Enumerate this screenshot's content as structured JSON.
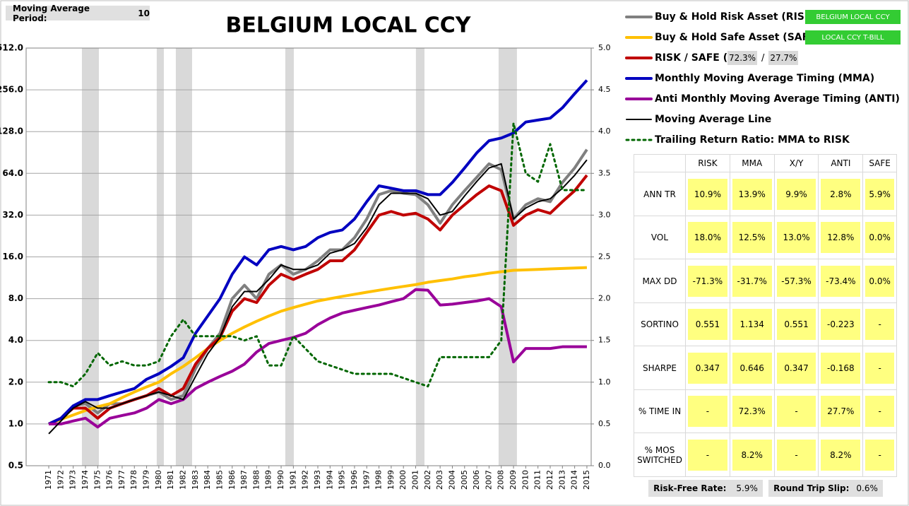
{
  "chart_data": {
    "type": "line",
    "title": "BELGIUM LOCAL CCY",
    "yscale": "log",
    "ylim": [
      0.5,
      512
    ],
    "yticks": [
      {
        "value": 0.5,
        "label": "0.5"
      },
      {
        "value": 1,
        "label": "1.0"
      },
      {
        "value": 2,
        "label": "2.0"
      },
      {
        "value": 4,
        "label": "4.0"
      },
      {
        "value": 8,
        "label": "8.0"
      },
      {
        "value": 16,
        "label": "16.0"
      },
      {
        "value": 32,
        "label": "32.0"
      },
      {
        "value": 64,
        "label": "64.0"
      },
      {
        "value": 128,
        "label": "128.0"
      },
      {
        "value": 256,
        "label": "256.0"
      },
      {
        "value": 512,
        "label": "512.0"
      }
    ],
    "y2lim": [
      0,
      5
    ],
    "y2ticks": [
      {
        "value": 0,
        "label": "0.0"
      },
      {
        "value": 0.5,
        "label": "0.5"
      },
      {
        "value": 1,
        "label": "1.0"
      },
      {
        "value": 1.5,
        "label": "1.5"
      },
      {
        "value": 2,
        "label": "2.0"
      },
      {
        "value": 2.5,
        "label": "2.5"
      },
      {
        "value": 3,
        "label": "3.0"
      },
      {
        "value": 3.5,
        "label": "3.5"
      },
      {
        "value": 4,
        "label": "4.0"
      },
      {
        "value": 4.5,
        "label": "4.5"
      },
      {
        "value": 5,
        "label": "5.0"
      }
    ],
    "xlim": [
      1969.15,
      2015.35
    ],
    "xticks": [
      1971,
      1972,
      1973,
      1974,
      1975,
      1976,
      1977,
      1978,
      1979,
      1980,
      1981,
      1982,
      1983,
      1984,
      1985,
      1986,
      1987,
      1988,
      1989,
      1990,
      1991,
      1992,
      1993,
      1994,
      1995,
      1996,
      1997,
      1998,
      1999,
      2000,
      2001,
      2002,
      2003,
      2004,
      2005,
      2006,
      2007,
      2008,
      2009,
      2010,
      2011,
      2012,
      2013,
      2014,
      2015
    ],
    "grid": true,
    "shaded_periods": [
      [
        1973.71,
        1975.1
      ],
      [
        1979.83,
        1980.41
      ],
      [
        1981.39,
        1982.72
      ],
      [
        1990.34,
        1991.04
      ],
      [
        2001.02,
        2001.72
      ],
      [
        2007.78,
        2009.28
      ]
    ],
    "x": [
      1971,
      1972,
      1973,
      1974,
      1975,
      1976,
      1977,
      1978,
      1979,
      1980,
      1981,
      1982,
      1983,
      1984,
      1985,
      1986,
      1987,
      1988,
      1989,
      1990,
      1991,
      1992,
      1993,
      1994,
      1995,
      1996,
      1997,
      1998,
      1999,
      2000,
      2001,
      2002,
      2003,
      2004,
      2005,
      2006,
      2007,
      2008,
      2009,
      2010,
      2011,
      2012,
      2013,
      2014,
      2015
    ],
    "series": [
      {
        "name": "Buy & Hold Risk Asset (RISK):",
        "color": "#808080",
        "width": 4,
        "values": [
          1.0,
          1.1,
          1.35,
          1.4,
          1.2,
          1.4,
          1.4,
          1.5,
          1.6,
          1.7,
          1.5,
          1.6,
          2.5,
          3.5,
          4.5,
          8,
          10,
          8,
          12,
          14,
          12,
          13,
          15,
          18,
          18,
          22,
          30,
          45,
          48,
          46,
          45,
          38,
          28,
          38,
          48,
          60,
          75,
          68,
          30,
          38,
          42,
          40,
          55,
          70,
          95
        ]
      },
      {
        "name": "Buy & Hold Safe Asset (SAFE):",
        "color": "#ffc000",
        "width": 4,
        "values": [
          1.0,
          1.08,
          1.16,
          1.25,
          1.33,
          1.4,
          1.55,
          1.7,
          1.85,
          2.0,
          2.3,
          2.6,
          3.0,
          3.5,
          4.0,
          4.5,
          5.0,
          5.5,
          6.0,
          6.5,
          6.9,
          7.3,
          7.7,
          8.0,
          8.3,
          8.6,
          8.9,
          9.2,
          9.5,
          9.8,
          10.1,
          10.5,
          10.8,
          11.1,
          11.5,
          11.8,
          12.2,
          12.5,
          12.8,
          12.9,
          13.0,
          13.1,
          13.2,
          13.3,
          13.4
        ]
      },
      {
        "name": "RISK / SAFE (X/Y):",
        "color": "#c00000",
        "width": 4,
        "values": [
          1.0,
          1.1,
          1.3,
          1.3,
          1.1,
          1.3,
          1.4,
          1.5,
          1.6,
          1.8,
          1.6,
          1.8,
          2.7,
          3.5,
          4.2,
          6.5,
          8,
          7.5,
          10,
          12,
          11,
          12,
          13,
          15,
          15,
          18,
          24,
          32,
          34,
          32,
          33,
          30,
          25,
          32,
          38,
          45,
          52,
          48,
          27,
          32,
          35,
          33,
          40,
          48,
          62
        ]
      },
      {
        "name": "Monthly Moving Average Timing (MMA)",
        "color": "#0000c0",
        "width": 4,
        "values": [
          1.0,
          1.1,
          1.35,
          1.5,
          1.5,
          1.6,
          1.7,
          1.8,
          2.1,
          2.3,
          2.6,
          3.0,
          4.5,
          6,
          8,
          12,
          16,
          14,
          18,
          19,
          18,
          19,
          22,
          24,
          25,
          30,
          40,
          52,
          50,
          48,
          48,
          45,
          45,
          55,
          70,
          90,
          110,
          115,
          125,
          150,
          155,
          160,
          190,
          240,
          300
        ]
      },
      {
        "name": "Anti Monthly Moving Average Timing (ANTI)",
        "color": "#990099",
        "width": 4,
        "values": [
          1.0,
          1.0,
          1.05,
          1.1,
          0.95,
          1.1,
          1.15,
          1.2,
          1.3,
          1.5,
          1.4,
          1.5,
          1.8,
          2.0,
          2.2,
          2.4,
          2.7,
          3.3,
          3.8,
          4.0,
          4.2,
          4.5,
          5.2,
          5.8,
          6.3,
          6.6,
          6.9,
          7.2,
          7.6,
          8.0,
          9.3,
          9.2,
          7.2,
          7.3,
          7.5,
          7.7,
          8.0,
          7.0,
          2.8,
          3.5,
          3.5,
          3.5,
          3.6,
          3.6,
          3.6
        ]
      },
      {
        "name": "Moving Average Line",
        "color": "#000000",
        "width": 2,
        "values": [
          0.85,
          1.05,
          1.3,
          1.45,
          1.3,
          1.3,
          1.4,
          1.5,
          1.6,
          1.7,
          1.6,
          1.5,
          2.2,
          3.2,
          4.2,
          7,
          9,
          9,
          11,
          14,
          13,
          13,
          14,
          17,
          18,
          20,
          26,
          38,
          46,
          46,
          46,
          42,
          32,
          34,
          44,
          56,
          70,
          75,
          30,
          36,
          40,
          42,
          50,
          62,
          80
        ]
      },
      {
        "name": "Trailing Return Ratio: MMA to RISK",
        "color": "#006600",
        "width": 3,
        "line_style": "dotted",
        "axis": "y2",
        "values": [
          1.0,
          1.0,
          0.95,
          1.1,
          1.35,
          1.2,
          1.25,
          1.2,
          1.2,
          1.25,
          1.55,
          1.75,
          1.55,
          1.55,
          1.55,
          1.55,
          1.5,
          1.55,
          1.2,
          1.2,
          1.55,
          1.4,
          1.25,
          1.2,
          1.15,
          1.1,
          1.1,
          1.1,
          1.1,
          1.05,
          1.0,
          0.95,
          1.3,
          1.3,
          1.3,
          1.3,
          1.3,
          1.5,
          4.1,
          3.5,
          3.4,
          3.85,
          3.3,
          3.3,
          3.3
        ]
      }
    ]
  },
  "period": {
    "label": "Moving Average Period:",
    "value": "10"
  },
  "legend_fields": {
    "risk_asset": "BELGIUM LOCAL CCY",
    "safe_asset": "LOCAL CCY T-BILL",
    "x_weight": "72.3%",
    "separator": "/",
    "y_weight": "27.7%"
  },
  "table": {
    "columns": [
      "RISK",
      "MMA",
      "X/Y",
      "ANTI",
      "SAFE"
    ],
    "rows": [
      {
        "label": "ANN TR",
        "cells": [
          "10.9%",
          "13.9%",
          "9.9%",
          "2.8%",
          "5.9%"
        ]
      },
      {
        "label": "VOL",
        "cells": [
          "18.0%",
          "12.5%",
          "13.0%",
          "12.8%",
          "0.0%"
        ]
      },
      {
        "label": "MAX DD",
        "cells": [
          "-71.3%",
          "-31.7%",
          "-57.3%",
          "-73.4%",
          "0.0%"
        ]
      },
      {
        "label": "SORTINO",
        "cells": [
          "0.551",
          "1.134",
          "0.551",
          "-0.223",
          "-"
        ]
      },
      {
        "label": "SHARPE",
        "cells": [
          "0.347",
          "0.646",
          "0.347",
          "-0.168",
          "-"
        ]
      },
      {
        "label": "% TIME IN",
        "cells": [
          "-",
          "72.3%",
          "-",
          "27.7%",
          "-"
        ]
      },
      {
        "label": "% MOS SWITCHED",
        "cells": [
          "-",
          "8.2%",
          "-",
          "8.2%",
          "-"
        ]
      }
    ]
  },
  "footer": {
    "risk_free_label": "Risk-Free Rate:",
    "risk_free_value": "5.9%",
    "slip_label": "Round Trip Slip:",
    "slip_value": "0.6%"
  }
}
